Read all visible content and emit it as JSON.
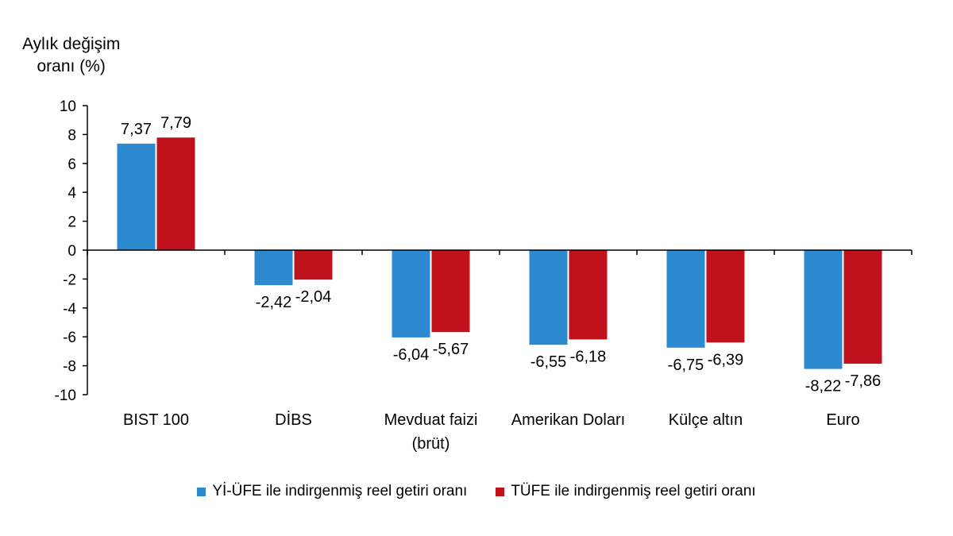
{
  "chart_data": {
    "type": "bar",
    "ylabel_line1": "Aylık değişim",
    "ylabel_line2": "oranı (%)",
    "ylim": [
      -10,
      10
    ],
    "yticks": [
      10,
      8,
      6,
      4,
      2,
      0,
      -2,
      -4,
      -6,
      -8,
      -10
    ],
    "categories": [
      [
        "BIST 100"
      ],
      [
        "DİBS"
      ],
      [
        "Mevduat faizi",
        "(brüt)"
      ],
      [
        "Amerikan Doları"
      ],
      [
        "Külçe altın"
      ],
      [
        "Euro"
      ]
    ],
    "series": [
      {
        "name": "Yİ-ÜFE ile indirgenmiş reel getiri oranı",
        "color": "#2e8ad0",
        "values": [
          7.37,
          -2.42,
          -6.04,
          -6.55,
          -6.75,
          -8.22
        ],
        "labels": [
          "7,37",
          "-2,42",
          "-6,04",
          "-6,55",
          "-6,75",
          "-8,22"
        ]
      },
      {
        "name": "TÜFE ile indirgenmiş reel getiri oranı",
        "color": "#c0121c",
        "values": [
          7.79,
          -2.04,
          -5.67,
          -6.18,
          -6.39,
          -7.86
        ],
        "labels": [
          "7,79",
          "-2,04",
          "-5,67",
          "-6,18",
          "-6,39",
          "-7,86"
        ]
      }
    ],
    "grid": false,
    "legend_position": "bottom"
  }
}
